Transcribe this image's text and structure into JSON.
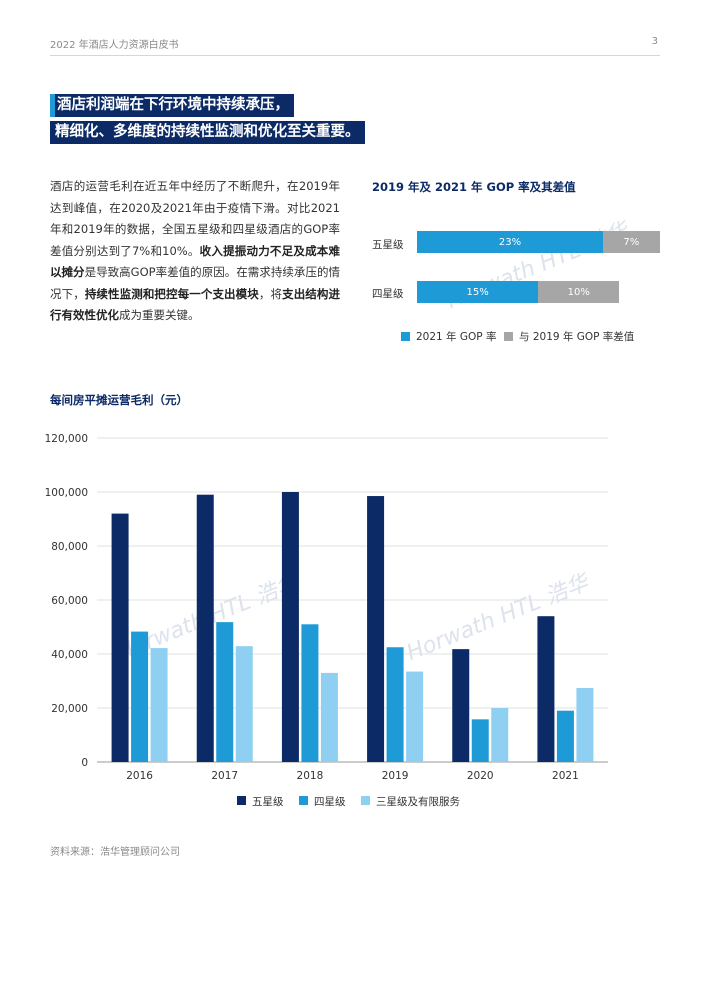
{
  "header": {
    "title": "2022 年酒店人力资源白皮书",
    "page_number": "3"
  },
  "headline": {
    "line1": "酒店利润端在下行环境中持续承压，",
    "line2": "精细化、多维度的持续性监测和优化至关重要。"
  },
  "paragraph": {
    "p1": "酒店的运营毛利在近五年中经历了不断爬升，在2019年达到峰值，在2020及2021年由于疫情下滑。对比2021年和2019年的数据，全国五星级和四星级酒店的GOP率差值分别达到了7%和10%。",
    "b1": "收入提振动力不足及成本难以摊分",
    "p2": "是导致高GOP率差值的原因。在需求持续承压的情况下，",
    "b2": "持续性监测和把控每一个支出模块",
    "p3": "，将",
    "b3": "支出结构进行有效性优化",
    "p4": "成为重要关键。"
  },
  "watermark": "Horwath HTL 浩华",
  "gop_chart": {
    "title": "2019 年及 2021 年 GOP 率及其差值",
    "colors": {
      "rate": "#1e9ad6",
      "gap": "#a6a6a6"
    },
    "legend": {
      "rate": "2021 年 GOP 率",
      "gap": "与 2019 年 GOP 率差值"
    },
    "rows": [
      {
        "label": "五星级",
        "rate": 23,
        "gap": 7,
        "rate_text": "23%",
        "gap_text": "7%"
      },
      {
        "label": "四星级",
        "rate": 15,
        "gap": 10,
        "rate_text": "15%",
        "gap_text": "10%"
      }
    ]
  },
  "chart_title": "每间房平摊运营毛利（元）",
  "chart_data": {
    "type": "bar",
    "title": "每间房平摊运营毛利（元）",
    "categories": [
      "2016",
      "2017",
      "2018",
      "2019",
      "2020",
      "2021"
    ],
    "series": [
      {
        "name": "五星级",
        "color": "#0b2a66",
        "values": [
          92000,
          99000,
          100000,
          98500,
          41800,
          54000
        ]
      },
      {
        "name": "四星级",
        "color": "#1e9ad6",
        "values": [
          48300,
          51800,
          51000,
          42500,
          15800,
          19000
        ]
      },
      {
        "name": "三星级及有限服务",
        "color": "#8fd0f2",
        "values": [
          42200,
          42900,
          33000,
          33500,
          20000,
          27400
        ]
      }
    ],
    "ylim": [
      0,
      120000
    ],
    "yticks": [
      "0",
      "20,000",
      "40,000",
      "60,000",
      "80,000",
      "100,000",
      "120,000"
    ],
    "grid": true,
    "legend_position": "bottom"
  },
  "source": "资料来源：浩华管理顾问公司"
}
